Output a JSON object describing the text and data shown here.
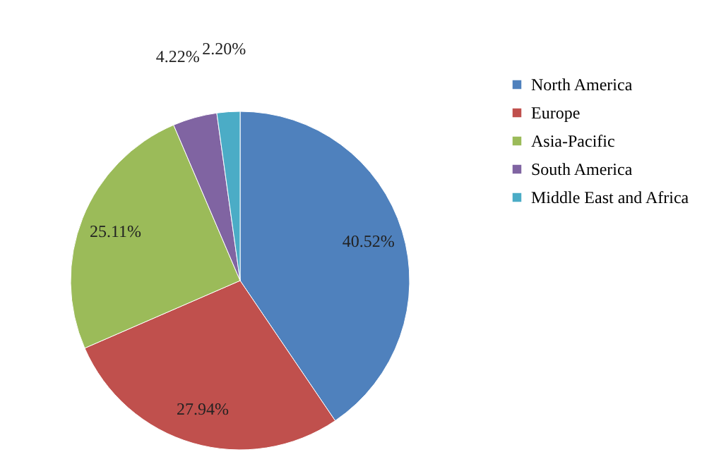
{
  "chart_data": {
    "type": "pie",
    "categories": [
      "North America",
      "Europe",
      "Asia-Pacific",
      "South America",
      "Middle East and Africa"
    ],
    "values": [
      40.52,
      27.94,
      25.11,
      4.22,
      2.2
    ],
    "colors": [
      "#4f81bd",
      "#c0504d",
      "#9bbb59",
      "#8064a2",
      "#4bacc6"
    ],
    "value_labels": [
      "40.52%",
      "27.94%",
      "25.11%",
      "4.22%",
      "2.20%"
    ],
    "legend": "right"
  }
}
